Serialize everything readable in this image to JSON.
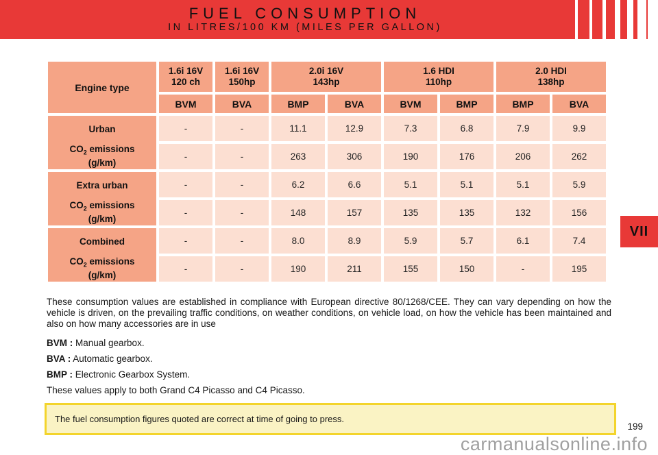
{
  "header": {
    "title": "FUEL CONSUMPTION",
    "subtitle": "IN LITRES/100 KM (MILES PER GALLON)"
  },
  "section_tab": "VII",
  "colors": {
    "banner_red": "#e83937",
    "table_header_salmon": "#f5a486",
    "table_data_pink": "#fcdfd2",
    "note_background": "#faf3c4",
    "note_border": "#f3d42c",
    "watermark_gray": "#a0a0a0"
  },
  "table": {
    "corner_label": "Engine type",
    "engines": [
      {
        "name": "1.6i 16V",
        "power": "120 ch"
      },
      {
        "name": "1.6i 16V",
        "power": "150hp"
      },
      {
        "name": "2.0i 16V",
        "power": "143hp"
      },
      {
        "name": "1.6 HDI",
        "power": "110hp"
      },
      {
        "name": "2.0 HDI",
        "power": "138hp"
      }
    ],
    "gearboxes": [
      "BVM",
      "BVA",
      "BMP",
      "BVA",
      "BVM",
      "BMP",
      "BMP",
      "BVA"
    ],
    "co2_label": {
      "prefix": "CO",
      "sub": "2",
      "suffix": " emissions",
      "unit": "(g/km)"
    },
    "sections": [
      {
        "label": "Urban",
        "consumption": [
          "-",
          "-",
          "11.1",
          "12.9",
          "7.3",
          "6.8",
          "7.9",
          "9.9"
        ],
        "co2": [
          "-",
          "-",
          "263",
          "306",
          "190",
          "176",
          "206",
          "262"
        ]
      },
      {
        "label": "Extra urban",
        "consumption": [
          "-",
          "-",
          "6.2",
          "6.6",
          "5.1",
          "5.1",
          "5.1",
          "5.9"
        ],
        "co2": [
          "-",
          "-",
          "148",
          "157",
          "135",
          "135",
          "132",
          "156"
        ]
      },
      {
        "label": "Combined",
        "consumption": [
          "-",
          "-",
          "8.0",
          "8.9",
          "5.9",
          "5.7",
          "6.1",
          "7.4"
        ],
        "co2": [
          "-",
          "-",
          "190",
          "211",
          "155",
          "150",
          "-",
          "195"
        ]
      }
    ]
  },
  "paragraph": "These consumption values are established in compliance with European directive 80/1268/CEE. They can vary depending on how the vehicle is driven, on the prevailing traffic conditions, on weather conditions, on vehicle load, on how the vehicle has been maintained and also on how many accessories are in use",
  "legend": [
    {
      "abbr": "BVM :",
      "text": " Manual gearbox."
    },
    {
      "abbr": "BVA :",
      "text": " Automatic gearbox."
    },
    {
      "abbr": "BMP :",
      "text": " Electronic Gearbox System."
    }
  ],
  "applies_note": "These values apply to both Grand C4 Picasso and C4 Picasso.",
  "warning_note": "The fuel consumption figures quoted are correct at time of going to press.",
  "page_number": "199",
  "watermark": "carmanualsonline.info"
}
